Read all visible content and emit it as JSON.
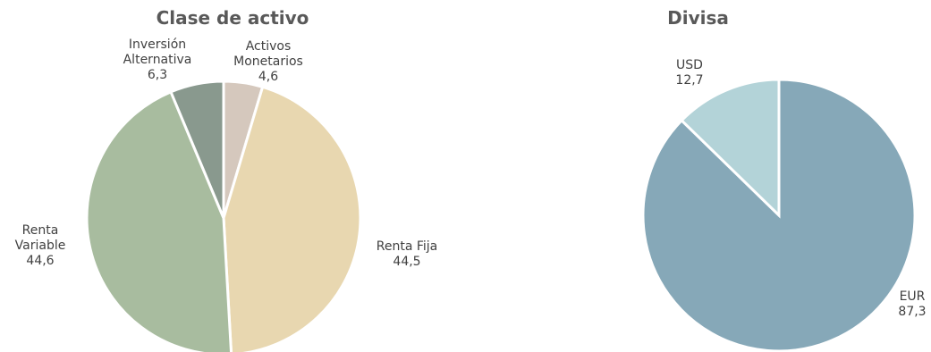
{
  "chart_data": [
    {
      "type": "pie",
      "title": "Clase de activo",
      "slices": [
        {
          "label": [
            "Activos",
            "Monetarios"
          ],
          "value_text": "4,6",
          "value": 4.6,
          "color": "#d5c8bd"
        },
        {
          "label": [
            "Renta Fija"
          ],
          "value_text": "44,5",
          "value": 44.5,
          "color": "#e8d7b0"
        },
        {
          "label": [
            "Renta",
            "Variable"
          ],
          "value_text": "44,6",
          "value": 44.6,
          "color": "#a8bc9f"
        },
        {
          "label": [
            "Inversión",
            "Alternativa"
          ],
          "value_text": "6,3",
          "value": 6.3,
          "color": "#89998e"
        }
      ]
    },
    {
      "type": "pie",
      "title": "Divisa",
      "slices": [
        {
          "label": [
            "EUR"
          ],
          "value_text": "87,3",
          "value": 87.3,
          "color": "#86a8b8"
        },
        {
          "label": [
            "USD"
          ],
          "value_text": "12,7",
          "value": 12.7,
          "color": "#b3d3d8"
        }
      ]
    }
  ]
}
